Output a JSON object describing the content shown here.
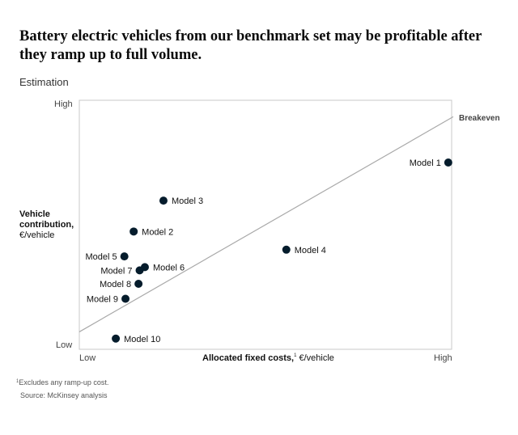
{
  "title": "Battery electric vehicles from our benchmark set may be profitable after they ramp up to full volume.",
  "subtitle": "Estimation",
  "footnote_marker": "1",
  "footnote": "Excludes any ramp-up cost.",
  "source": "Source: McKinsey analysis",
  "chart_data": {
    "type": "scatter",
    "ylabel_bold": "Vehicle contribution,",
    "ylabel_unit": "€/vehicle",
    "xlabel_bold": "Allocated fixed costs,",
    "xlabel_sup": "1",
    "xlabel_unit": " €/vehicle",
    "x_ticks": [
      "Low",
      "High"
    ],
    "y_ticks": [
      "High",
      "Low"
    ],
    "xlim": [
      0,
      100
    ],
    "ylim": [
      0,
      100
    ],
    "grid": false,
    "breakeven": {
      "label": "Breakeven",
      "from": [
        0,
        7
      ],
      "to": [
        100,
        93
      ]
    },
    "points": [
      {
        "label": "Model 1",
        "x": 99.1,
        "y": 75.0,
        "label_side": "left"
      },
      {
        "label": "Model 2",
        "x": 14.6,
        "y": 47.3,
        "label_side": "right"
      },
      {
        "label": "Model 3",
        "x": 22.6,
        "y": 59.7,
        "label_side": "right"
      },
      {
        "label": "Model 4",
        "x": 55.6,
        "y": 40.0,
        "label_side": "right"
      },
      {
        "label": "Model 5",
        "x": 12.1,
        "y": 37.3,
        "label_side": "left"
      },
      {
        "label": "Model 6",
        "x": 17.6,
        "y": 33.0,
        "label_side": "right"
      },
      {
        "label": "Model 7",
        "x": 16.2,
        "y": 31.7,
        "label_side": "left"
      },
      {
        "label": "Model 8",
        "x": 15.9,
        "y": 26.3,
        "label_side": "left"
      },
      {
        "label": "Model 9",
        "x": 12.4,
        "y": 20.3,
        "label_side": "left"
      },
      {
        "label": "Model 10",
        "x": 9.8,
        "y": 4.3,
        "label_side": "right"
      }
    ],
    "colors": {
      "point": "#051c2c",
      "axis": "#c8c8c8",
      "breakeven": "#a9a9a9"
    }
  }
}
